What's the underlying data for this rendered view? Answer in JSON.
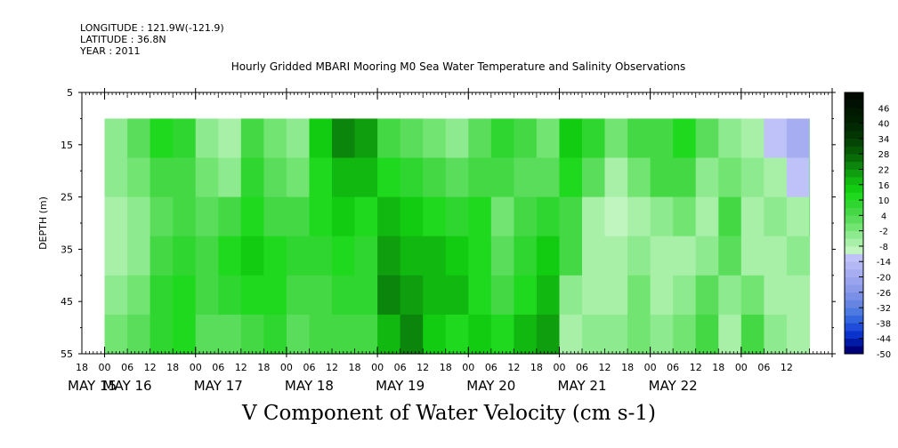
{
  "header": {
    "longitude": "LONGITUDE : 121.9W(-121.9)",
    "latitude": "LATITUDE : 36.8N",
    "year": "YEAR : 2011"
  },
  "chart_data": {
    "type": "heatmap",
    "title": "Hourly Gridded MBARI Mooring M0 Sea Water Temperature and Salinity Observations",
    "variable_label": "V Component of Water Velocity (cm s-1)",
    "ylabel": "DEPTH (m)",
    "y_ticks": [
      5,
      15,
      25,
      35,
      45,
      55
    ],
    "ylim": [
      5,
      55
    ],
    "y_inverted": true,
    "data_depth_range": [
      10,
      55
    ],
    "x_hour_ticks": [
      "18",
      "00",
      "06",
      "12",
      "18",
      "00",
      "06",
      "12",
      "18",
      "00",
      "06",
      "12",
      "18",
      "00",
      "06",
      "12",
      "18",
      "00",
      "06",
      "12",
      "18",
      "00",
      "06",
      "12",
      "18",
      "00",
      "06",
      "12",
      "18",
      "00",
      "06",
      "12"
    ],
    "x_date_labels": [
      "MAY 15",
      "MAY 16",
      "MAY 17",
      "MAY 18",
      "MAY 19",
      "MAY 20",
      "MAY 21",
      "MAY 22"
    ],
    "colorbar": {
      "ticks": [
        "46",
        "40",
        "34",
        "28",
        "22",
        "16",
        "10",
        "4",
        "-2",
        "-8",
        "-14",
        "-20",
        "-26",
        "-32",
        "-38",
        "-44",
        "-50"
      ],
      "range": [
        -50,
        52
      ],
      "step": 3
    },
    "columns": [
      {
        "hour": 0,
        "v": [
          -3,
          -5,
          -8,
          -6,
          -4,
          -2
        ]
      },
      {
        "hour": 6,
        "v": [
          2,
          -2,
          -5,
          -3,
          -1,
          1
        ]
      },
      {
        "hour": 12,
        "v": [
          10,
          6,
          3,
          5,
          8,
          9
        ]
      },
      {
        "hour": 18,
        "v": [
          8,
          4,
          6,
          9,
          12,
          10
        ]
      },
      {
        "hour": 24,
        "v": [
          -4,
          -2,
          3,
          6,
          4,
          1
        ]
      },
      {
        "hour": 30,
        "v": [
          -6,
          -4,
          5,
          10,
          8,
          3
        ]
      },
      {
        "hour": 36,
        "v": [
          4,
          8,
          12,
          14,
          10,
          6
        ]
      },
      {
        "hour": 42,
        "v": [
          0,
          3,
          6,
          10,
          12,
          8
        ]
      },
      {
        "hour": 48,
        "v": [
          -3,
          -1,
          4,
          8,
          6,
          2
        ]
      },
      {
        "hour": 54,
        "v": [
          14,
          12,
          10,
          8,
          6,
          5
        ]
      },
      {
        "hour": 60,
        "v": [
          22,
          18,
          14,
          10,
          8,
          6
        ]
      },
      {
        "hour": 66,
        "v": [
          20,
          16,
          12,
          9,
          7,
          4
        ]
      },
      {
        "hour": 72,
        "v": [
          6,
          10,
          16,
          20,
          22,
          18
        ]
      },
      {
        "hour": 78,
        "v": [
          3,
          8,
          14,
          18,
          20,
          22
        ]
      },
      {
        "hour": 84,
        "v": [
          -2,
          4,
          10,
          16,
          18,
          14
        ]
      },
      {
        "hour": 90,
        "v": [
          -4,
          2,
          8,
          14,
          16,
          12
        ]
      },
      {
        "hour": 96,
        "v": [
          2,
          6,
          10,
          12,
          10,
          14
        ]
      },
      {
        "hour": 102,
        "v": [
          8,
          4,
          -2,
          2,
          6,
          10
        ]
      },
      {
        "hour": 108,
        "v": [
          6,
          2,
          4,
          8,
          12,
          16
        ]
      },
      {
        "hour": 114,
        "v": [
          -2,
          2,
          8,
          14,
          18,
          20
        ]
      },
      {
        "hour": 120,
        "v": [
          14,
          10,
          6,
          4,
          -4,
          -6
        ]
      },
      {
        "hour": 126,
        "v": [
          8,
          2,
          -6,
          -8,
          -6,
          -4
        ]
      },
      {
        "hour": 132,
        "v": [
          -2,
          -6,
          -10,
          -8,
          -6,
          -3
        ]
      },
      {
        "hour": 138,
        "v": [
          4,
          -2,
          -8,
          -4,
          -2,
          0
        ]
      },
      {
        "hour": 144,
        "v": [
          6,
          4,
          -4,
          -6,
          -8,
          -4
        ]
      },
      {
        "hour": 150,
        "v": [
          10,
          4,
          -2,
          -6,
          -4,
          -2
        ]
      },
      {
        "hour": 156,
        "v": [
          2,
          -4,
          -8,
          -4,
          2,
          6
        ]
      },
      {
        "hour": 162,
        "v": [
          -4,
          -2,
          4,
          2,
          -4,
          -6
        ]
      },
      {
        "hour": 168,
        "v": [
          -6,
          -4,
          -8,
          -6,
          -2,
          4
        ]
      },
      {
        "hour": 174,
        "v": [
          -12,
          -8,
          -4,
          -6,
          -8,
          -4
        ]
      },
      {
        "hour": 180,
        "v": [
          -20,
          -12,
          -6,
          -4,
          -6,
          -8
        ]
      },
      {
        "hour": 186,
        "v": [
          -4,
          2,
          4,
          -4,
          -8,
          -6
        ]
      }
    ]
  }
}
